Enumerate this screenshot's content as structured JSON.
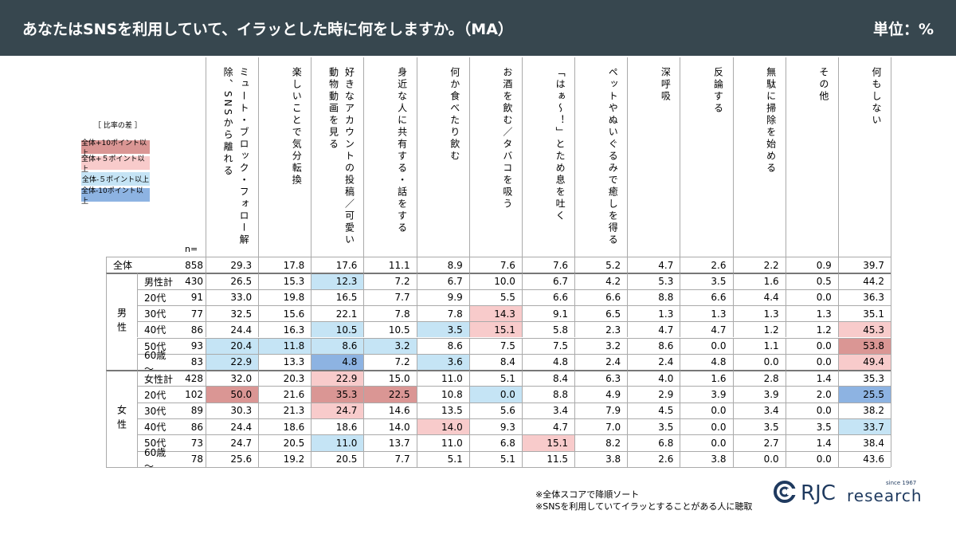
{
  "header": {
    "title": "あなたはSNSを利用していて、イラッとした時に何をしますか。（MA）",
    "unit": "単位：%"
  },
  "legend": {
    "title": "［ 比率の差 ］",
    "items": [
      {
        "label": "全体+10ポイント以上",
        "color": "#da9694"
      },
      {
        "label": "全体+５ポイント以上",
        "color": "#f8cbcb"
      },
      {
        "label": "全体-５ポイント以上",
        "color": "#c5e4f5"
      },
      {
        "label": "全体-10ポイント以上",
        "color": "#8db3e2"
      }
    ]
  },
  "table": {
    "n_label": "n=",
    "columns": [
      "ミュート・ブロック・フォロー解除、SNSから離れる",
      "楽しいことで気分転換",
      "好きなアカウントの投稿／可愛い動物動画を見る",
      "身近な人に共有する・話をする",
      "何か食べたり飲む",
      "お酒を飲む／タバコを吸う",
      "「はぁ～！」とため息を吐く",
      "ペットやぬいぐるみで癒しを得る",
      "深呼吸",
      "反論する",
      "無駄に掃除を始める",
      "その他",
      "何もしない"
    ],
    "total": {
      "label": "全体",
      "n": "858",
      "values": [
        "29.3",
        "17.8",
        "17.6",
        "11.1",
        "8.9",
        "7.6",
        "7.6",
        "5.2",
        "4.7",
        "2.6",
        "2.2",
        "0.9",
        "39.7"
      ]
    },
    "groups": [
      {
        "label": "男性",
        "rows": [
          {
            "label": "男性計",
            "n": "430",
            "values": [
              "26.5",
              "15.3",
              "12.3",
              "7.2",
              "6.7",
              "10.0",
              "6.7",
              "4.2",
              "5.3",
              "3.5",
              "1.6",
              "0.5",
              "44.2"
            ],
            "levels": [
              null,
              null,
              2,
              null,
              null,
              null,
              null,
              null,
              null,
              null,
              null,
              null,
              null
            ]
          },
          {
            "label": "20代",
            "n": "91",
            "values": [
              "33.0",
              "19.8",
              "16.5",
              "7.7",
              "9.9",
              "5.5",
              "6.6",
              "6.6",
              "8.8",
              "6.6",
              "4.4",
              "0.0",
              "36.3"
            ],
            "levels": [
              null,
              null,
              null,
              null,
              null,
              null,
              null,
              null,
              null,
              null,
              null,
              null,
              null
            ]
          },
          {
            "label": "30代",
            "n": "77",
            "values": [
              "32.5",
              "15.6",
              "22.1",
              "7.8",
              "7.8",
              "14.3",
              "9.1",
              "6.5",
              "1.3",
              "1.3",
              "1.3",
              "1.3",
              "35.1"
            ],
            "levels": [
              null,
              null,
              null,
              null,
              null,
              1,
              null,
              null,
              null,
              null,
              null,
              null,
              null
            ]
          },
          {
            "label": "40代",
            "n": "86",
            "values": [
              "24.4",
              "16.3",
              "10.5",
              "10.5",
              "3.5",
              "15.1",
              "5.8",
              "2.3",
              "4.7",
              "4.7",
              "1.2",
              "1.2",
              "45.3"
            ],
            "levels": [
              null,
              null,
              2,
              null,
              2,
              1,
              null,
              null,
              null,
              null,
              null,
              null,
              1
            ]
          },
          {
            "label": "50代",
            "n": "93",
            "values": [
              "20.4",
              "11.8",
              "8.6",
              "3.2",
              "8.6",
              "7.5",
              "7.5",
              "3.2",
              "8.6",
              "0.0",
              "1.1",
              "0.0",
              "53.8"
            ],
            "levels": [
              2,
              2,
              2,
              2,
              null,
              null,
              null,
              null,
              null,
              null,
              null,
              null,
              0
            ]
          },
          {
            "label": "60歳～",
            "n": "83",
            "values": [
              "22.9",
              "13.3",
              "4.8",
              "7.2",
              "3.6",
              "8.4",
              "4.8",
              "2.4",
              "2.4",
              "4.8",
              "0.0",
              "0.0",
              "49.4"
            ],
            "levels": [
              2,
              null,
              3,
              null,
              2,
              null,
              null,
              null,
              null,
              null,
              null,
              null,
              1
            ]
          }
        ]
      },
      {
        "label": "女性",
        "rows": [
          {
            "label": "女性計",
            "n": "428",
            "values": [
              "32.0",
              "20.3",
              "22.9",
              "15.0",
              "11.0",
              "5.1",
              "8.4",
              "6.3",
              "4.0",
              "1.6",
              "2.8",
              "1.4",
              "35.3"
            ],
            "levels": [
              null,
              null,
              1,
              null,
              null,
              null,
              null,
              null,
              null,
              null,
              null,
              null,
              null
            ]
          },
          {
            "label": "20代",
            "n": "102",
            "values": [
              "50.0",
              "21.6",
              "35.3",
              "22.5",
              "10.8",
              "0.0",
              "8.8",
              "4.9",
              "2.9",
              "3.9",
              "3.9",
              "2.0",
              "25.5"
            ],
            "levels": [
              0,
              null,
              0,
              0,
              null,
              2,
              null,
              null,
              null,
              null,
              null,
              null,
              3
            ]
          },
          {
            "label": "30代",
            "n": "89",
            "values": [
              "30.3",
              "21.3",
              "24.7",
              "14.6",
              "13.5",
              "5.6",
              "3.4",
              "7.9",
              "4.5",
              "0.0",
              "3.4",
              "0.0",
              "38.2"
            ],
            "levels": [
              null,
              null,
              1,
              null,
              null,
              null,
              null,
              null,
              null,
              null,
              null,
              null,
              null
            ]
          },
          {
            "label": "40代",
            "n": "86",
            "values": [
              "24.4",
              "18.6",
              "18.6",
              "14.0",
              "14.0",
              "9.3",
              "4.7",
              "7.0",
              "3.5",
              "0.0",
              "3.5",
              "3.5",
              "33.7"
            ],
            "levels": [
              null,
              null,
              null,
              null,
              1,
              null,
              null,
              null,
              null,
              null,
              null,
              null,
              2
            ]
          },
          {
            "label": "50代",
            "n": "73",
            "values": [
              "24.7",
              "20.5",
              "11.0",
              "13.7",
              "11.0",
              "6.8",
              "15.1",
              "8.2",
              "6.8",
              "0.0",
              "2.7",
              "1.4",
              "38.4"
            ],
            "levels": [
              null,
              null,
              2,
              null,
              null,
              null,
              1,
              null,
              null,
              null,
              null,
              null,
              null
            ]
          },
          {
            "label": "60歳～",
            "n": "78",
            "values": [
              "25.6",
              "19.2",
              "20.5",
              "7.7",
              "5.1",
              "5.1",
              "11.5",
              "3.8",
              "2.6",
              "3.8",
              "0.0",
              "0.0",
              "43.6"
            ],
            "levels": [
              null,
              null,
              null,
              null,
              null,
              null,
              null,
              null,
              null,
              null,
              null,
              null,
              null
            ]
          }
        ]
      }
    ]
  },
  "footnotes": [
    "※全体スコアで降順ソート",
    "※SNSを利用していてイラッとすることがある人に聴取"
  ],
  "logo": {
    "mark": "RJC",
    "word": "research",
    "since": "since 1967"
  }
}
